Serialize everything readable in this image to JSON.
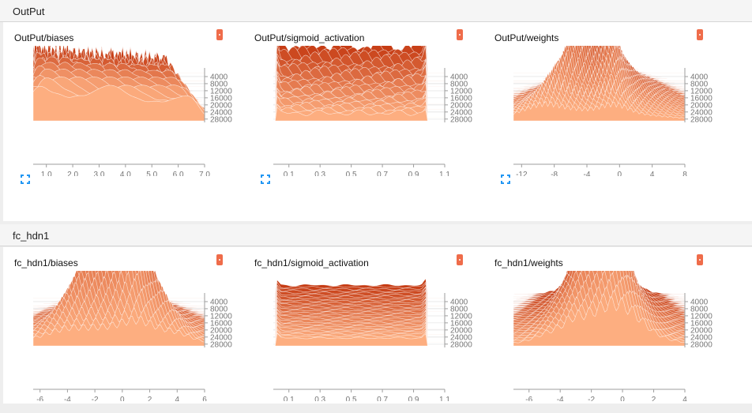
{
  "sections": [
    {
      "title": "OutPut",
      "cards": [
        {
          "title": "OutPut/biases",
          "chart_index": 0
        },
        {
          "title": "OutPut/sigmoid_activation",
          "chart_index": 1
        },
        {
          "title": "OutPut/weights",
          "chart_index": 2
        }
      ]
    },
    {
      "title": "fc_hdn1",
      "cards": [
        {
          "title": "fc_hdn1/biases",
          "chart_index": 3
        },
        {
          "title": "fc_hdn1/sigmoid_activation",
          "chart_index": 4
        },
        {
          "title": "fc_hdn1/weights",
          "chart_index": 5
        }
      ]
    }
  ],
  "colors": {
    "oldest": "#c63c14",
    "newest": "#fdae80",
    "axis": "#9e9e9e",
    "icon": "#2196f3"
  },
  "icons": {
    "expand": "expand-icon",
    "menu": "menu-badge-icon"
  },
  "chart_data": [
    {
      "type": "histogram",
      "title": "OutPut/biases",
      "xlim": [
        0.5,
        7.0
      ],
      "x_ticks": [
        1.0,
        2.0,
        3.0,
        4.0,
        5.0,
        6.0,
        7.0
      ],
      "x_tick_labels": [
        "1.0",
        "2.0",
        "3.0",
        "4.0",
        "5.0",
        "6.0",
        "7.0"
      ],
      "step_ticks": [
        4000,
        8000,
        12000,
        16000,
        20000,
        24000,
        28000
      ],
      "step_range": [
        0,
        29000
      ],
      "dist": {
        "kind": "peaks",
        "count": 13,
        "start": [
          0.6,
          5.3
        ],
        "end": [
          0.6,
          6.6
        ],
        "width": [
          0.05,
          0.3
        ],
        "height": [
          40,
          28
        ],
        "spread": 0.15
      }
    },
    {
      "type": "histogram",
      "title": "OutPut/sigmoid_activation",
      "xlim": [
        0.0,
        1.1
      ],
      "x_ticks": [
        0.1,
        0.3,
        0.5,
        0.7,
        0.9,
        1.1
      ],
      "x_tick_labels": [
        "0.1",
        "0.3",
        "0.5",
        "0.7",
        "0.9",
        "1.1"
      ],
      "step_ticks": [
        4000,
        8000,
        12000,
        16000,
        20000,
        24000,
        28000
      ],
      "step_range": [
        0,
        29000
      ],
      "dist": {
        "kind": "band",
        "range": [
          0.02,
          0.98
        ],
        "height": [
          28,
          10
        ],
        "noise": 0.4,
        "edge": 0.5
      }
    },
    {
      "type": "histogram",
      "title": "OutPut/weights",
      "xlim": [
        -13,
        8
      ],
      "x_ticks": [
        -12,
        -8,
        -4,
        0,
        4,
        8
      ],
      "x_tick_labels": [
        "-12",
        "-8",
        "-4",
        "0",
        "4",
        "8"
      ],
      "step_ticks": [
        4000,
        8000,
        12000,
        16000,
        20000,
        24000,
        28000
      ],
      "step_range": [
        0,
        29000
      ],
      "dist": {
        "kind": "spiky",
        "center": [
          -1.5,
          -3.0
        ],
        "width": [
          1.0,
          7.0
        ],
        "height": [
          70,
          14
        ],
        "spikes": 4
      }
    },
    {
      "type": "histogram",
      "title": "fc_hdn1/biases",
      "xlim": [
        -6.5,
        6
      ],
      "x_ticks": [
        -6,
        -4,
        -2,
        0,
        2,
        4,
        6
      ],
      "x_tick_labels": [
        "-6",
        "-4",
        "-2",
        "0",
        "2",
        "4",
        "6"
      ],
      "step_ticks": [
        4000,
        8000,
        12000,
        16000,
        20000,
        24000,
        28000
      ],
      "step_range": [
        0,
        29000
      ],
      "dist": {
        "kind": "spiky",
        "center": [
          -0.4,
          -0.4
        ],
        "width": [
          0.8,
          4.5
        ],
        "height": [
          70,
          12
        ],
        "spikes": 8
      }
    },
    {
      "type": "histogram",
      "title": "fc_hdn1/sigmoid_activation",
      "xlim": [
        0.0,
        1.1
      ],
      "x_ticks": [
        0.1,
        0.3,
        0.5,
        0.7,
        0.9,
        1.1
      ],
      "x_tick_labels": [
        "0.1",
        "0.3",
        "0.5",
        "0.7",
        "0.9",
        "1.1"
      ],
      "step_ticks": [
        4000,
        8000,
        12000,
        16000,
        20000,
        24000,
        28000
      ],
      "step_range": [
        0,
        29000
      ],
      "dist": {
        "kind": "band",
        "range": [
          0.02,
          0.98
        ],
        "height": [
          12,
          10
        ],
        "noise": 0.12,
        "edge": 0.6
      }
    },
    {
      "type": "histogram",
      "title": "fc_hdn1/weights",
      "xlim": [
        -7,
        4
      ],
      "x_ticks": [
        -6,
        -4,
        -2,
        0,
        2,
        4
      ],
      "x_tick_labels": [
        "-6",
        "-4",
        "-2",
        "0",
        "2",
        "4"
      ],
      "step_ticks": [
        4000,
        8000,
        12000,
        16000,
        20000,
        24000,
        28000
      ],
      "step_range": [
        0,
        29000
      ],
      "dist": {
        "kind": "spiky",
        "center": [
          -1.4,
          -1.4
        ],
        "width": [
          1.5,
          3.4
        ],
        "height": [
          50,
          16
        ],
        "spikes": 10
      }
    }
  ]
}
